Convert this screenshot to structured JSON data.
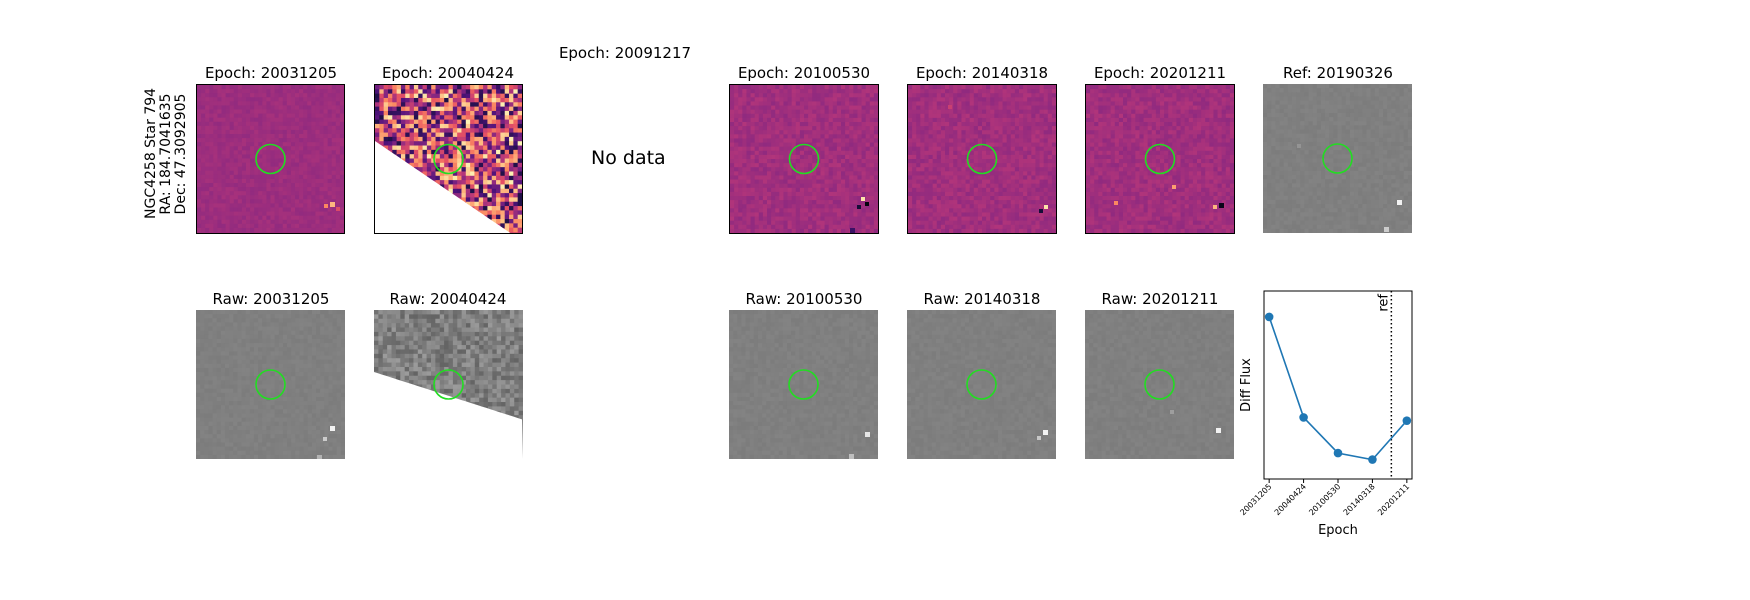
{
  "figure": {
    "target_info": [
      "NGC4258 Star 794",
      "RA: 184.7041635",
      "Dec: 47.3092905"
    ],
    "no_data_text": "No data",
    "marker_color": "#22dd22",
    "diff_cmap": "magma",
    "raw_cmap": "gray"
  },
  "diff_panels": [
    {
      "title": "Epoch: 20031205",
      "state": "full"
    },
    {
      "title": "Epoch: 20040424",
      "state": "partial"
    },
    {
      "title": "Epoch: 20091217",
      "state": "no-data"
    },
    {
      "title": "Epoch: 20100530",
      "state": "full"
    },
    {
      "title": "Epoch: 20140318",
      "state": "full"
    },
    {
      "title": "Epoch: 20201211",
      "state": "full"
    },
    {
      "title": "Ref: 20190326",
      "state": "full"
    }
  ],
  "raw_panels": [
    {
      "title": "Raw: 20031205",
      "state": "full"
    },
    {
      "title": "Raw: 20040424",
      "state": "partial"
    },
    {
      "title": "Raw: 20100530",
      "state": "full"
    },
    {
      "title": "Raw: 20140318",
      "state": "full"
    },
    {
      "title": "Raw: 20201211",
      "state": "full"
    }
  ],
  "chart_data": {
    "type": "line",
    "title": "",
    "xlabel": "Epoch",
    "ylabel": "Diff Flux",
    "categories": [
      "20031205",
      "20040424",
      "20100530",
      "20140318",
      "20201211"
    ],
    "values": [
      1.0,
      0.38,
      0.16,
      0.12,
      0.36
    ],
    "ylim": [
      0.0,
      1.16
    ],
    "ref_line": {
      "position": 3.55,
      "label": "ref"
    },
    "series_color": "#1f77b4",
    "grid": false
  }
}
